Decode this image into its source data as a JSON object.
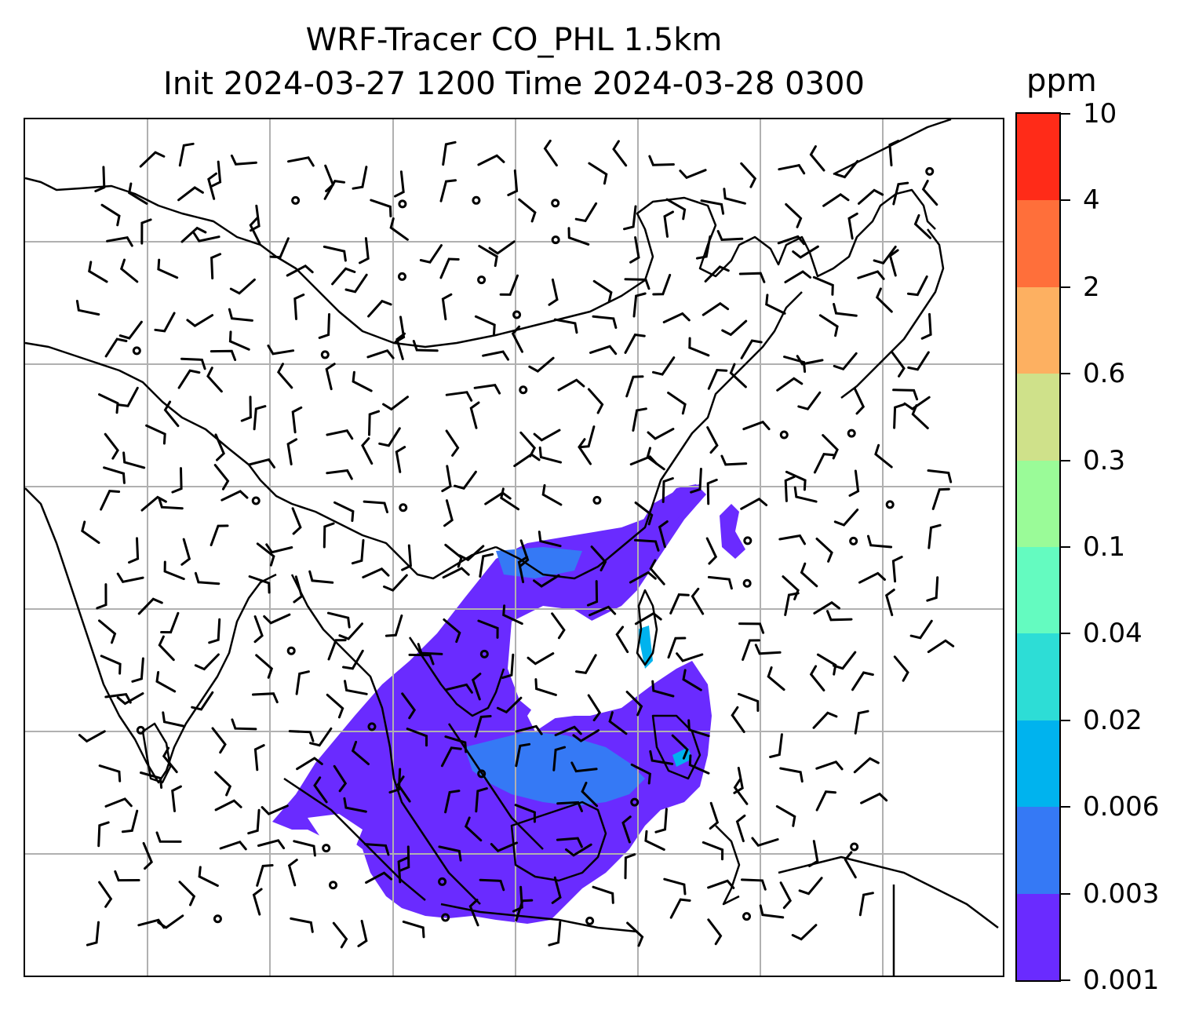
{
  "map": {
    "title_line1": "WRF-Tracer CO_PHL 1.5km",
    "title_line2": "Init 2024-03-27 1200 Time 2024-03-28 0300",
    "layers": [
      "coastlines",
      "country borders",
      "lat/lon gridlines",
      "wind barbs",
      "CO tracer shading"
    ],
    "grid_color": "#b0b0b0"
  },
  "colorbar": {
    "unit": "ppm",
    "levels": [
      "0.001",
      "0.003",
      "0.006",
      "0.02",
      "0.04",
      "0.1",
      "0.3",
      "0.6",
      "2",
      "4",
      "10"
    ],
    "colors": [
      "#6a2bff",
      "#3579f5",
      "#00b3ee",
      "#2dddd6",
      "#64fbc0",
      "#9afb98",
      "#cfe18a",
      "#fdb061",
      "#ff6f3a",
      "#ff2b18"
    ]
  }
}
